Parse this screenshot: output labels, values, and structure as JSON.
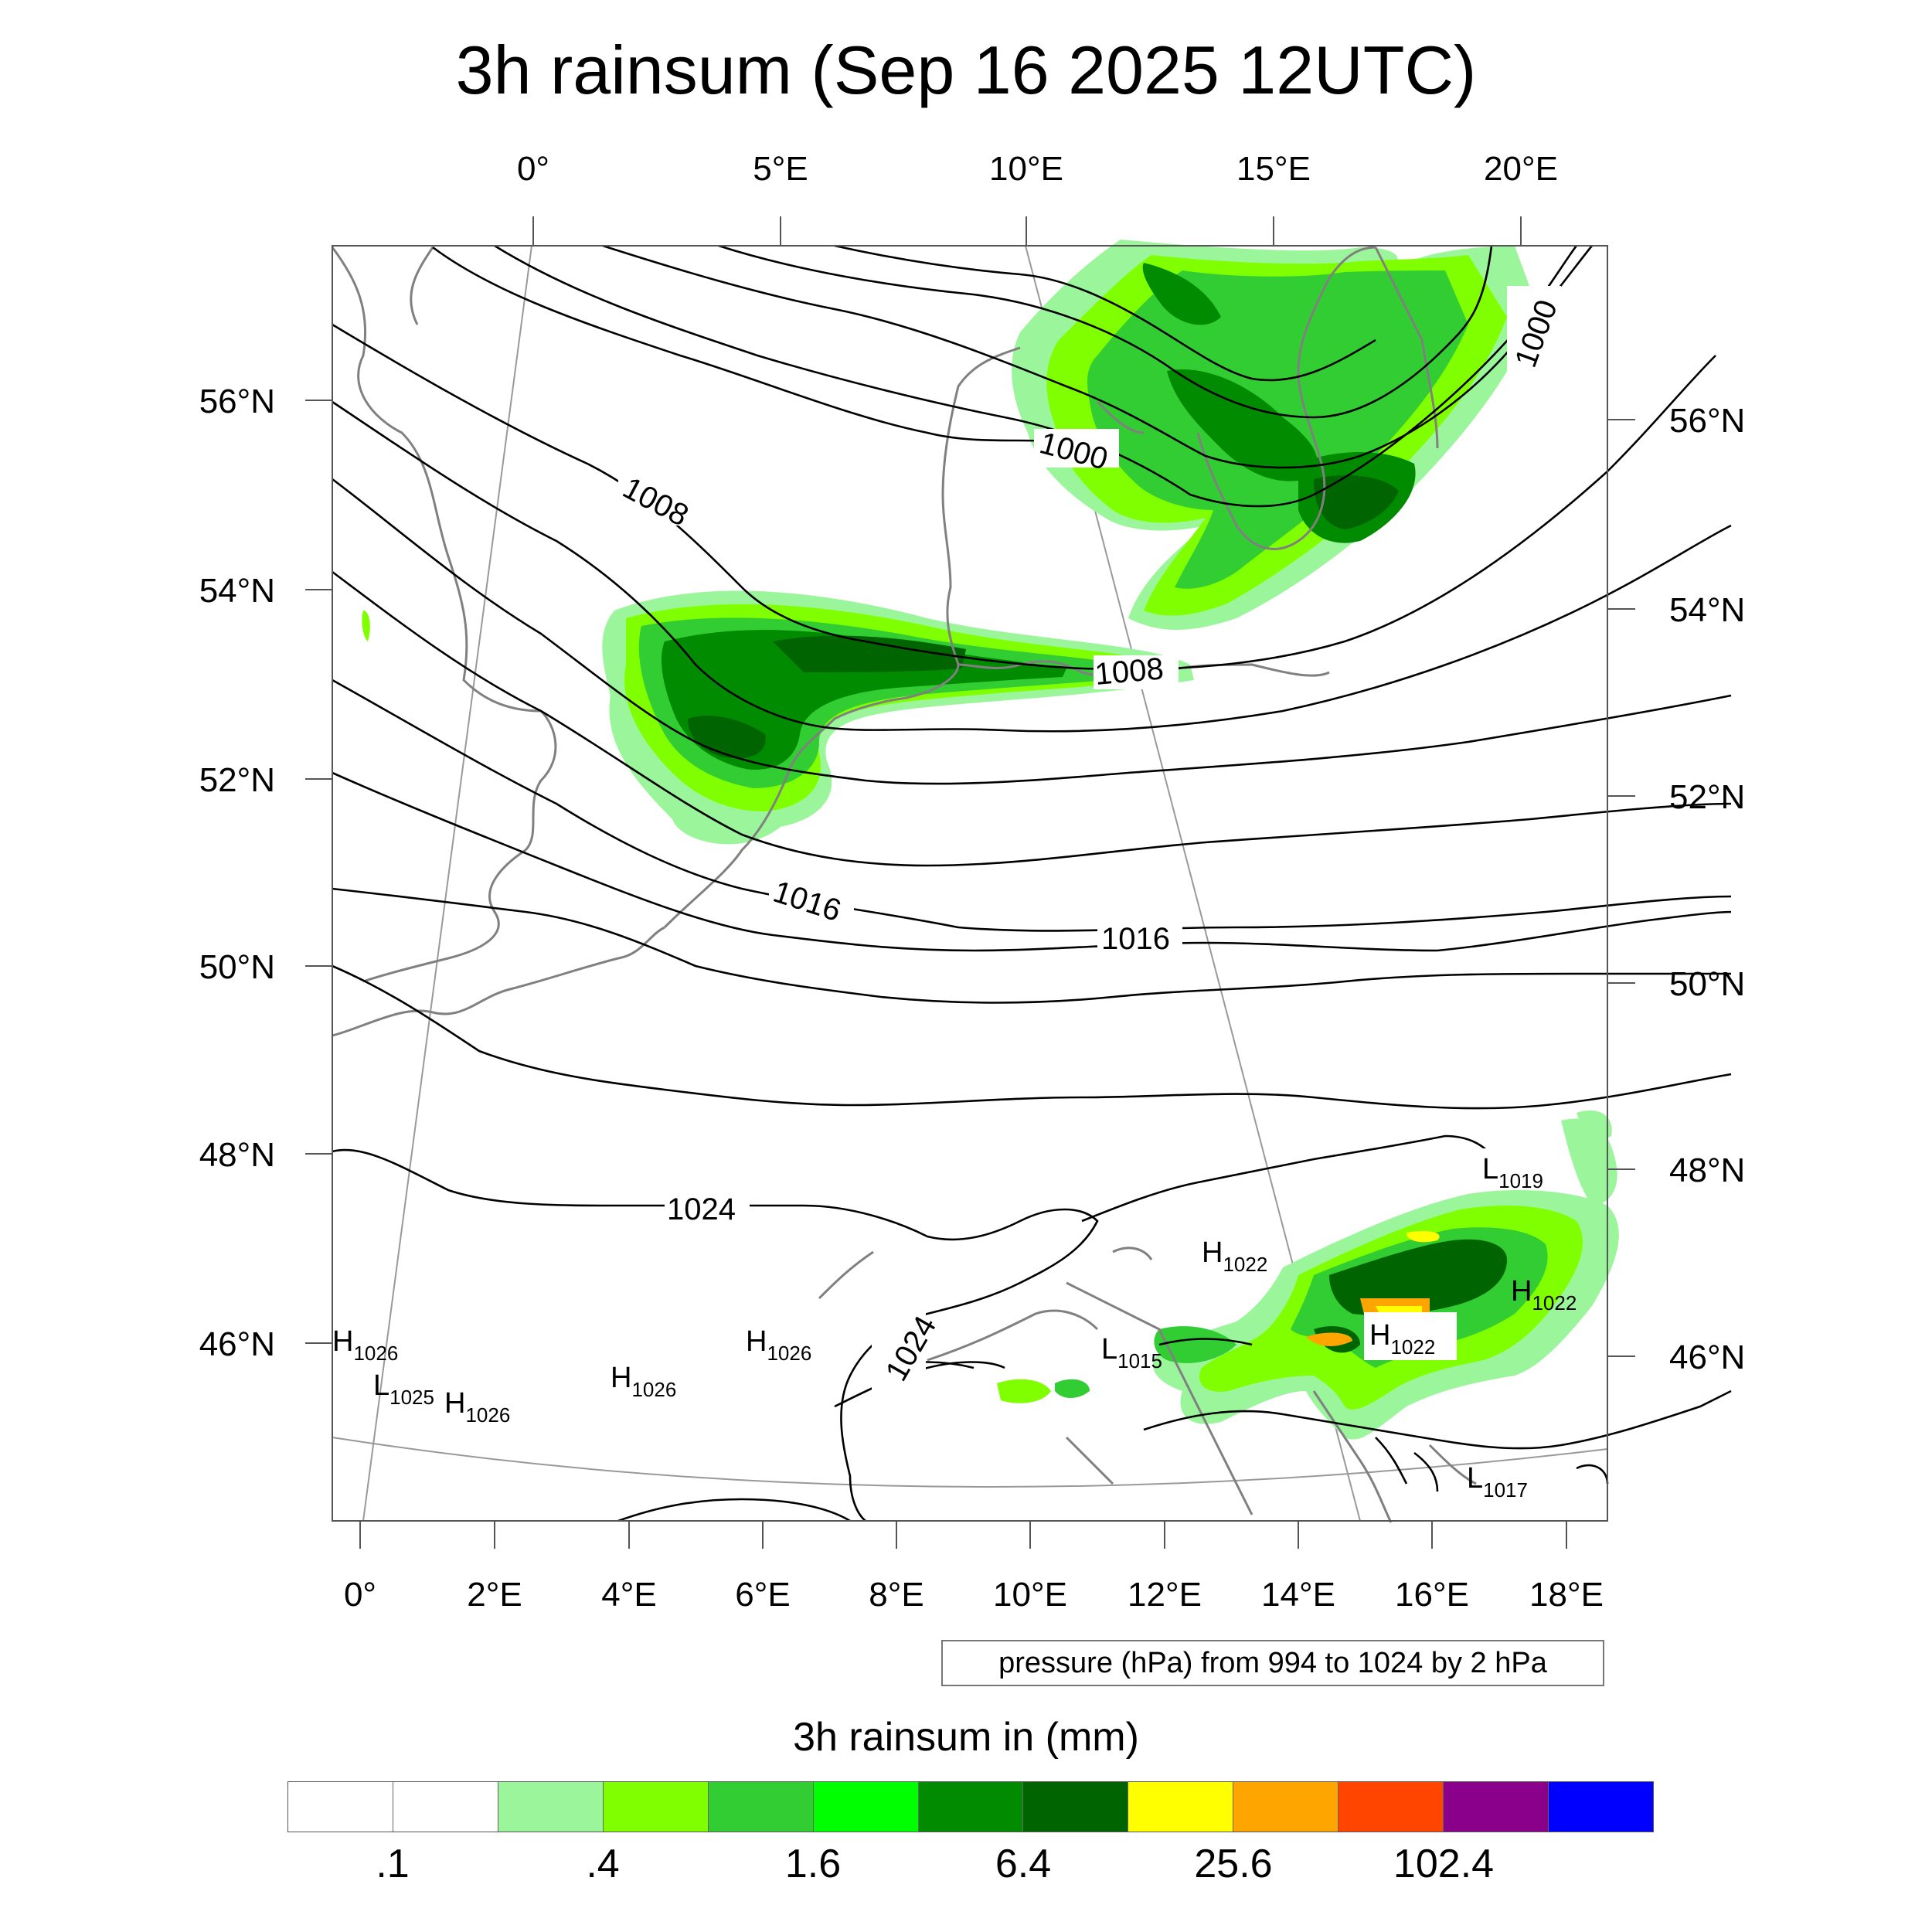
{
  "title": "3h rainsum (Sep 16 2025 12UTC)",
  "top_lon_labels": [
    "0°",
    "5°E",
    "10°E",
    "15°E",
    "20°E"
  ],
  "bottom_lon_labels": [
    "0°",
    "2°E",
    "4°E",
    "6°E",
    "8°E",
    "10°E",
    "12°E",
    "14°E",
    "16°E",
    "18°E"
  ],
  "left_lat_labels": [
    "56°N",
    "54°N",
    "52°N",
    "50°N",
    "48°N",
    "46°N"
  ],
  "right_lat_labels": [
    "56°N",
    "54°N",
    "52°N",
    "50°N",
    "48°N",
    "46°N"
  ],
  "isobar_labels": [
    "1000",
    "1000",
    "1008",
    "1008",
    "1016",
    "1016",
    "1024",
    "1024"
  ],
  "pressure_systems": [
    {
      "type": "L",
      "value": "1019"
    },
    {
      "type": "H",
      "value": "1022"
    },
    {
      "type": "H",
      "value": "1022"
    },
    {
      "type": "H",
      "value": "1022"
    },
    {
      "type": "L",
      "value": "1015"
    },
    {
      "type": "L",
      "value": "1017"
    },
    {
      "type": "H",
      "value": "1026"
    },
    {
      "type": "H",
      "value": "1026"
    },
    {
      "type": "H",
      "value": "1026"
    },
    {
      "type": "L",
      "value": "1025"
    },
    {
      "type": "H",
      "value": "1026"
    }
  ],
  "pressure_note": "pressure (hPa) from 994 to 1024 by 2 hPa",
  "colorbar": {
    "title": "3h rainsum in (mm)",
    "colors": [
      "#ffffff",
      "#ffffff",
      "#9bf59b",
      "#7fff00",
      "#32cd32",
      "#00ff00",
      "#008b00",
      "#006400",
      "#ffff00",
      "#ffa500",
      "#ff4500",
      "#8b008b",
      "#0000ff"
    ],
    "tick_labels": [
      ".1",
      ".4",
      "1.6",
      "6.4",
      "25.6",
      "102.4"
    ]
  }
}
